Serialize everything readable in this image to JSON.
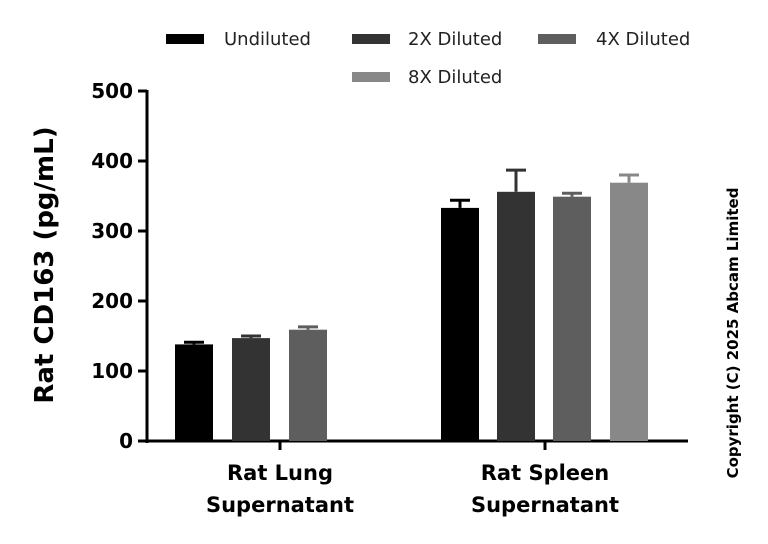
{
  "chart_data": {
    "type": "bar",
    "title": "",
    "xlabel": "",
    "ylabel": "Rat CD163 (pg/mL)",
    "ylim": [
      0,
      500
    ],
    "yticks": [
      0,
      100,
      200,
      300,
      400,
      500
    ],
    "groups": [
      {
        "label_lines": [
          "Rat Lung",
          "Supernatant"
        ]
      },
      {
        "label_lines": [
          "Rat Spleen",
          "Supernatant"
        ]
      }
    ],
    "series": [
      {
        "name": "Undiluted",
        "color": "#000000",
        "values": [
          138,
          333
        ],
        "errors": [
          3,
          11
        ]
      },
      {
        "name": "2X Diluted",
        "color": "#333333",
        "values": [
          147,
          356
        ],
        "errors": [
          3,
          31
        ]
      },
      {
        "name": "4X Diluted",
        "color": "#5e5e5e",
        "values": [
          159,
          349
        ],
        "errors": [
          4,
          5
        ]
      },
      {
        "name": "8X Diluted",
        "color": "#888888",
        "values": [
          null,
          369
        ],
        "errors": [
          null,
          11
        ]
      }
    ],
    "legend_position": "top",
    "grid": false
  },
  "copyright": "Copyright (C) 2025 Abcam Limited"
}
